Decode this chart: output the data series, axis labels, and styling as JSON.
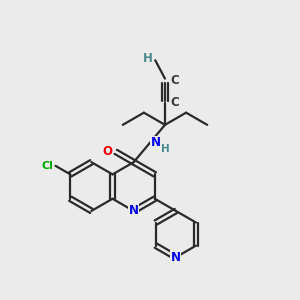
{
  "bg_color": "#ebebeb",
  "atom_colors": {
    "C": "#3a3a3a",
    "H": "#4a8a8a",
    "N": "#0000ee",
    "O": "#ee0000",
    "Cl": "#00aa00"
  },
  "bond_color": "#2a2a2a",
  "bond_lw": 1.6,
  "figsize": [
    3.0,
    3.0
  ],
  "dpi": 100
}
